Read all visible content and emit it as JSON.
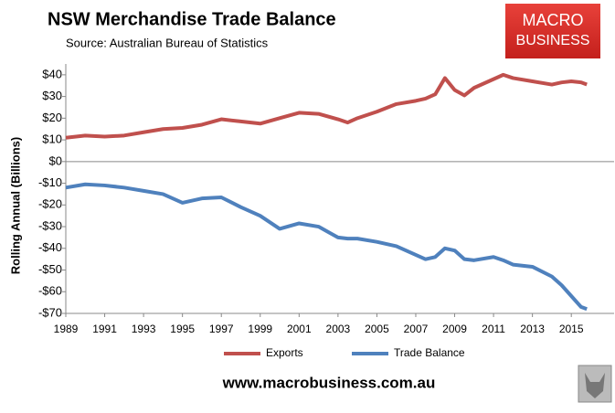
{
  "chart_data": {
    "type": "line",
    "title": "NSW Merchandise Trade Balance",
    "subtitle": "Source: Australian Bureau of Statistics",
    "y_label": "Rolling Annual (Billions)",
    "x": [
      1989,
      1990,
      1991,
      1992,
      1993,
      1994,
      1995,
      1996,
      1997,
      1998,
      1999,
      2000,
      2001,
      2002,
      2003,
      2003.5,
      2004,
      2005,
      2006,
      2007,
      2007.5,
      2008,
      2008.5,
      2009,
      2009.5,
      2010,
      2011,
      2011.5,
      2012,
      2013,
      2014,
      2014.5,
      2015,
      2015.5,
      2015.8
    ],
    "series": [
      {
        "name": "Exports",
        "color": "#c0504d",
        "values": [
          11,
          12,
          11.5,
          12,
          13.5,
          15,
          15.5,
          17,
          19.5,
          18.5,
          17.5,
          20,
          22.5,
          22,
          19.5,
          18,
          20,
          23,
          26.5,
          28,
          29,
          31,
          38.5,
          33,
          30.5,
          34,
          38,
          40,
          38.5,
          37,
          35.5,
          36.5,
          37,
          36.5,
          35.5
        ]
      },
      {
        "name": "Trade Balance",
        "color": "#4f81bd",
        "values": [
          -12,
          -10.5,
          -11,
          -12,
          -13.5,
          -15,
          -19,
          -17,
          -16.5,
          -21,
          -25,
          -31,
          -28.5,
          -30,
          -35,
          -35.5,
          -35.5,
          -37,
          -39,
          -43,
          -45,
          -44,
          -40,
          -41,
          -45,
          -45.5,
          -44,
          -45.5,
          -47.5,
          -48.5,
          -53,
          -57,
          -62,
          -67,
          -68
        ]
      }
    ],
    "xlim": [
      1989,
      2017.2
    ],
    "xticks": [
      1989,
      1991,
      1993,
      1995,
      1997,
      1999,
      2001,
      2003,
      2005,
      2007,
      2009,
      2011,
      2013,
      2015
    ],
    "ylim": [
      -70,
      45
    ],
    "yticks": [
      {
        "value": 40,
        "label": "$40"
      },
      {
        "value": 30,
        "label": "$30"
      },
      {
        "value": 20,
        "label": "$20"
      },
      {
        "value": 10,
        "label": "$10"
      },
      {
        "value": 0,
        "label": "$0"
      },
      {
        "value": -10,
        "label": "-$10"
      },
      {
        "value": -20,
        "label": "-$20"
      },
      {
        "value": -30,
        "label": "-$30"
      },
      {
        "value": -40,
        "label": "-$40"
      },
      {
        "value": -50,
        "label": "-$50"
      },
      {
        "value": -60,
        "label": "-$60"
      },
      {
        "value": -70,
        "label": "-$70"
      }
    ],
    "legend": "bottom"
  },
  "logo": [
    "MACRO",
    "BUSINESS"
  ],
  "website": "www.macrobusiness.com.au"
}
